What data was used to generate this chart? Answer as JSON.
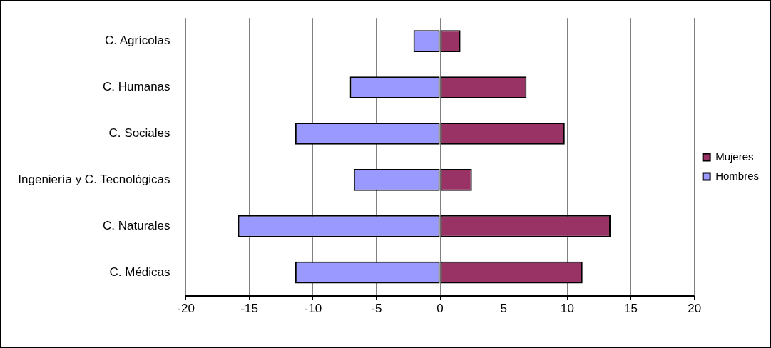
{
  "chart_data": {
    "type": "bar",
    "orientation": "horizontal",
    "stacked": true,
    "categories": [
      "C. Agrícolas",
      "C. Humanas",
      "C. Sociales",
      "Ingeniería y C. Tecnológicas",
      "C. Naturales",
      "C. Médicas"
    ],
    "series": [
      {
        "name": "Mujeres",
        "color": "#993366",
        "values": [
          1.6,
          6.8,
          9.8,
          2.5,
          13.4,
          11.2
        ]
      },
      {
        "name": "Hombres",
        "color": "#9999ff",
        "values": [
          -2.1,
          -7.1,
          -11.4,
          -6.8,
          -15.9,
          -11.4
        ]
      }
    ],
    "xlim": [
      -20,
      20
    ],
    "xticks": [
      -20,
      -15,
      -10,
      -5,
      0,
      5,
      10,
      15,
      20
    ],
    "grid": "x",
    "legend": "right"
  }
}
